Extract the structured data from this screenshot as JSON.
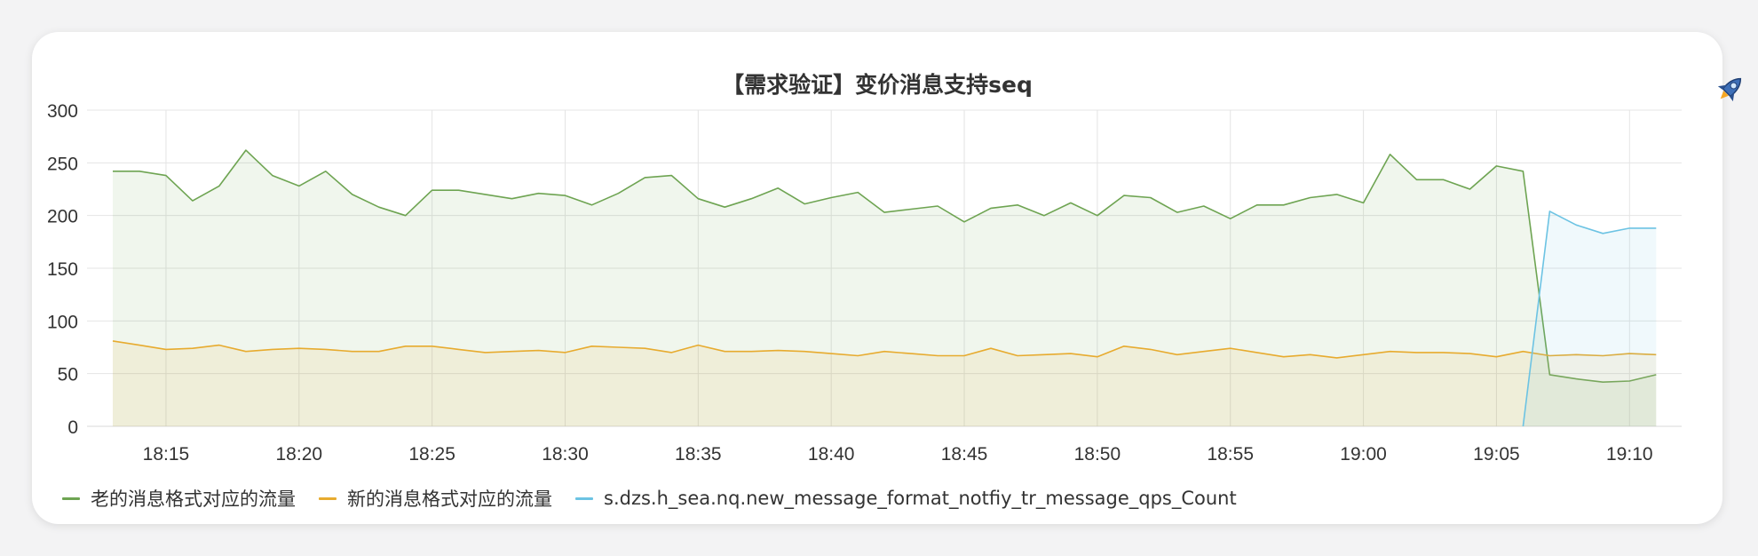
{
  "icons": {
    "corner": "rocket-icon"
  },
  "colors": {
    "green": "#6ea452",
    "orange": "#e7ab2f",
    "blue": "#6cc3e3",
    "grid": "#e4e4e4"
  },
  "chart_data": {
    "type": "area",
    "title": "【需求验证】变价消息支持seq",
    "xlabel": "",
    "ylabel": "",
    "ylim": [
      0,
      300
    ],
    "yticks": [
      "0",
      "50",
      "100",
      "150",
      "200",
      "250",
      "300"
    ],
    "xticks": [
      "18:15",
      "18:20",
      "18:25",
      "18:30",
      "18:35",
      "18:40",
      "18:45",
      "18:50",
      "18:55",
      "19:00",
      "19:05",
      "19:10"
    ],
    "x": [
      "18:13",
      "18:14",
      "18:15",
      "18:16",
      "18:17",
      "18:18",
      "18:19",
      "18:20",
      "18:21",
      "18:22",
      "18:23",
      "18:24",
      "18:25",
      "18:26",
      "18:27",
      "18:28",
      "18:29",
      "18:30",
      "18:31",
      "18:32",
      "18:33",
      "18:34",
      "18:35",
      "18:36",
      "18:37",
      "18:38",
      "18:39",
      "18:40",
      "18:41",
      "18:42",
      "18:43",
      "18:44",
      "18:45",
      "18:46",
      "18:47",
      "18:48",
      "18:49",
      "18:50",
      "18:51",
      "18:52",
      "18:53",
      "18:54",
      "18:55",
      "18:56",
      "18:57",
      "18:58",
      "18:59",
      "19:00",
      "19:01",
      "19:02",
      "19:03",
      "19:04",
      "19:05",
      "19:06",
      "19:07",
      "19:08",
      "19:09",
      "19:10",
      "19:11"
    ],
    "grid": true,
    "legend_position": "bottom-left",
    "series": [
      {
        "name": "老的消息格式对应的流量",
        "color": "#6ea452",
        "values": [
          242,
          242,
          238,
          214,
          228,
          262,
          238,
          228,
          242,
          220,
          208,
          200,
          224,
          224,
          220,
          216,
          221,
          219,
          210,
          221,
          236,
          238,
          216,
          208,
          216,
          226,
          211,
          217,
          222,
          203,
          206,
          209,
          194,
          207,
          210,
          200,
          212,
          200,
          219,
          217,
          203,
          209,
          197,
          210,
          210,
          217,
          220,
          212,
          258,
          234,
          234,
          225,
          247,
          242,
          49,
          45,
          42,
          43,
          49
        ]
      },
      {
        "name": "新的消息格式对应的流量",
        "color": "#e7ab2f",
        "values": [
          81,
          77,
          73,
          74,
          77,
          71,
          73,
          74,
          73,
          71,
          71,
          76,
          76,
          73,
          70,
          71,
          72,
          70,
          76,
          75,
          74,
          70,
          77,
          71,
          71,
          72,
          71,
          69,
          67,
          71,
          69,
          67,
          67,
          74,
          67,
          68,
          69,
          66,
          76,
          73,
          68,
          71,
          74,
          70,
          66,
          68,
          65,
          68,
          71,
          70,
          70,
          69,
          66,
          71,
          67,
          68,
          67,
          69,
          68
        ]
      },
      {
        "name": "s.dzs.h_sea.nq.new_message_format_notfiy_tr_message_qps_Count",
        "color": "#6cc3e3",
        "values": [
          null,
          null,
          null,
          null,
          null,
          null,
          null,
          null,
          null,
          null,
          null,
          null,
          null,
          null,
          null,
          null,
          null,
          null,
          null,
          null,
          null,
          null,
          null,
          null,
          null,
          null,
          null,
          null,
          null,
          null,
          null,
          null,
          null,
          null,
          null,
          null,
          null,
          null,
          null,
          null,
          null,
          null,
          null,
          null,
          null,
          null,
          null,
          null,
          null,
          null,
          null,
          null,
          null,
          0,
          204,
          191,
          183,
          188,
          188
        ]
      }
    ]
  }
}
